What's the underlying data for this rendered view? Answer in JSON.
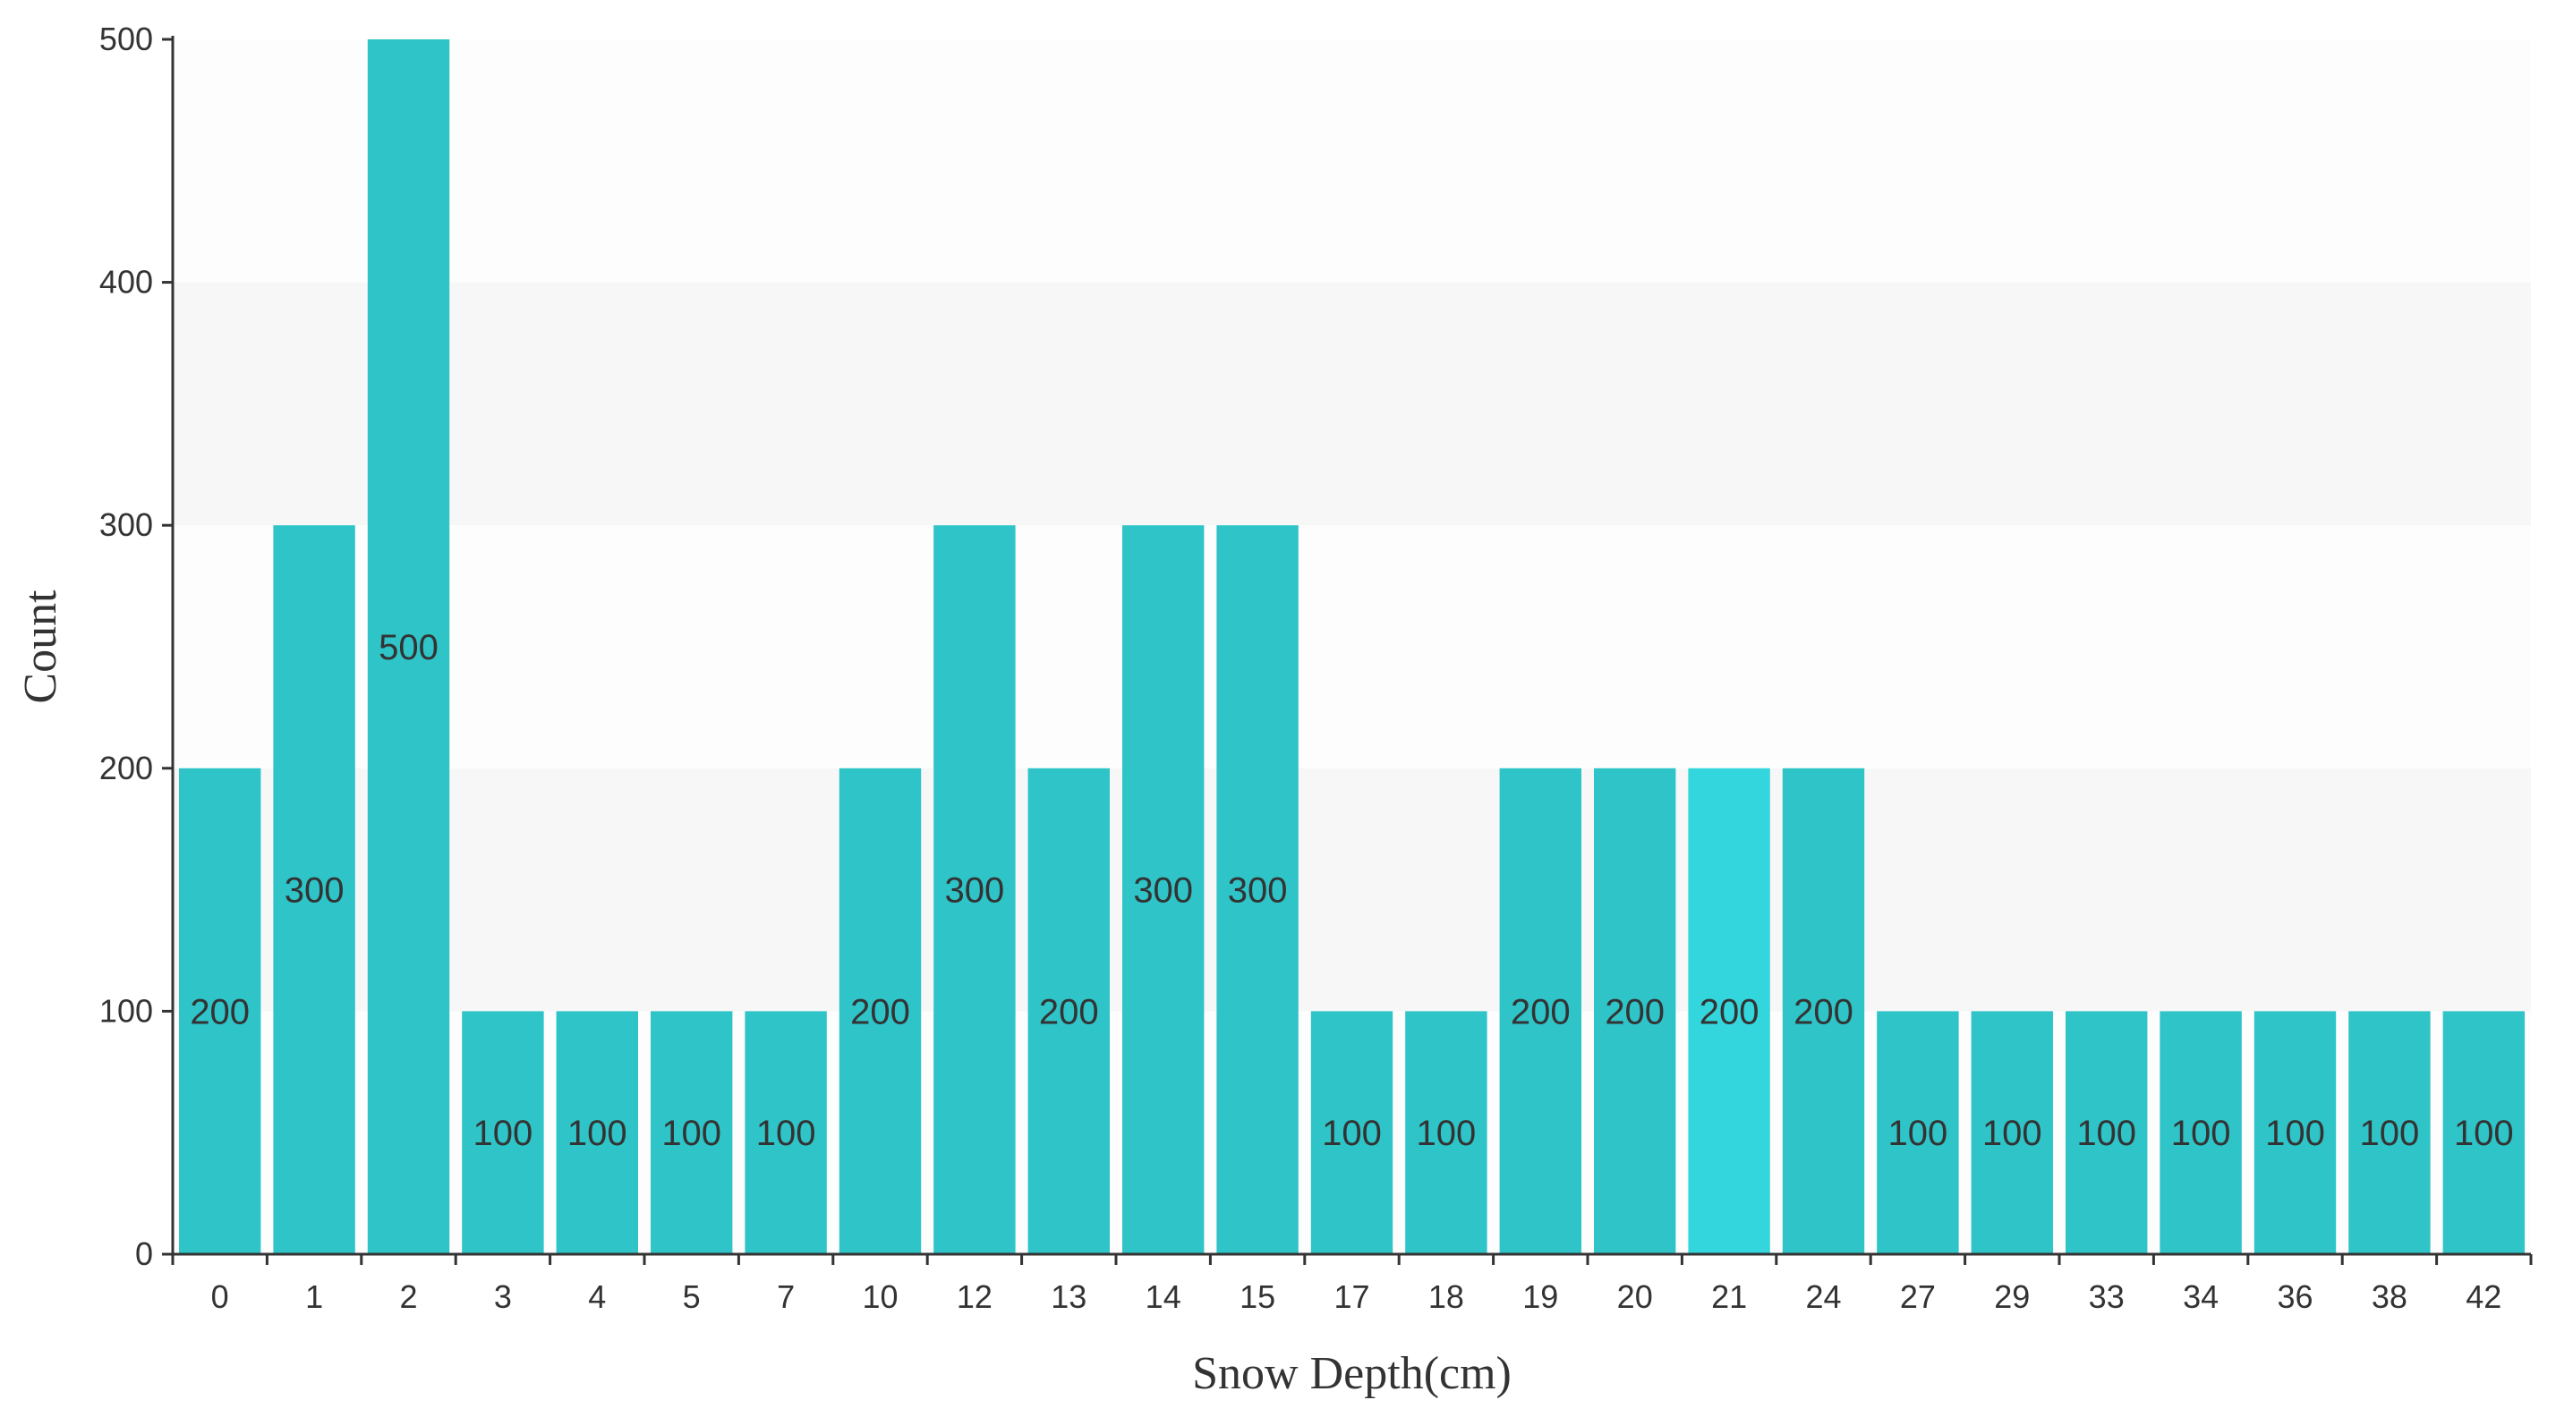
{
  "chart_data": {
    "type": "bar",
    "xlabel": "Snow Depth(cm)",
    "ylabel": "Count",
    "categories": [
      "0",
      "1",
      "2",
      "3",
      "4",
      "5",
      "7",
      "10",
      "12",
      "13",
      "14",
      "15",
      "17",
      "18",
      "19",
      "20",
      "21",
      "24",
      "27",
      "29",
      "33",
      "34",
      "36",
      "38",
      "42"
    ],
    "values": [
      200,
      300,
      500,
      100,
      100,
      100,
      100,
      200,
      300,
      200,
      300,
      300,
      100,
      100,
      200,
      200,
      200,
      200,
      100,
      100,
      100,
      100,
      100,
      100,
      100
    ],
    "data_labels": [
      "200",
      "300",
      "500",
      "100",
      "100",
      "100",
      "100",
      "200",
      "300",
      "200",
      "300",
      "300",
      "100",
      "100",
      "200",
      "200",
      "200",
      "200",
      "100",
      "100",
      "100",
      "100",
      "100",
      "100",
      "100"
    ],
    "ylim": [
      0,
      500
    ],
    "yticks": [
      0,
      100,
      200,
      300,
      400,
      500
    ],
    "ytick_labels": [
      "0",
      "100",
      "200",
      "300",
      "400",
      "500"
    ],
    "grid": "alternating horizontal bands",
    "legend": "none",
    "highlighted_category": "21",
    "colors": {
      "bar": "#2ec4c8",
      "bar_highlight": "#33d6dc",
      "band": "#f7f7f7",
      "axis": "#333333",
      "text": "#333333"
    }
  }
}
